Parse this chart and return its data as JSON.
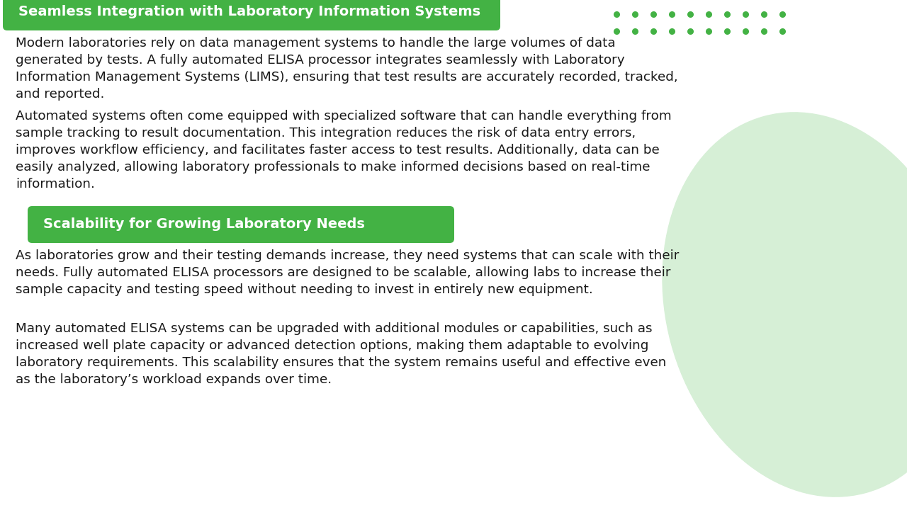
{
  "bg_color": "#ffffff",
  "header1": "Seamless Integration with Laboratory Information Systems",
  "header1_bg": "#43b244",
  "header1_text_color": "#ffffff",
  "header2": "Scalability for Growing Laboratory Needs",
  "header2_bg": "#43b244",
  "header2_text_color": "#ffffff",
  "body_text_color": "#1a1a1a",
  "dot_color": "#43b244",
  "watermark_color": "#d6efd6",
  "para1": "Modern laboratories rely on data management systems to handle the large volumes of data\ngenerated by tests. A fully automated ELISA processor integrates seamlessly with Laboratory\nInformation Management Systems (LIMS), ensuring that test results are accurately recorded, tracked,\nand reported.",
  "para2": "Automated systems often come equipped with specialized software that can handle everything from\nsample tracking to result documentation. This integration reduces the risk of data entry errors,\nimproves workflow efficiency, and facilitates faster access to test results. Additionally, data can be\neasily analyzed, allowing laboratory professionals to make informed decisions based on real-time\ninformation.",
  "para3": "As laboratories grow and their testing demands increase, they need systems that can scale with their\nneeds. Fully automated ELISA processors are designed to be scalable, allowing labs to increase their\nsample capacity and testing speed without needing to invest in entirely new equipment.",
  "para4": "Many automated ELISA systems can be upgraded with additional modules or capabilities, such as\nincreased well plate capacity or advanced detection options, making them adaptable to evolving\nlaboratory requirements. This scalability ensures that the system remains useful and effective even\nas the laboratory’s workload expands over time."
}
